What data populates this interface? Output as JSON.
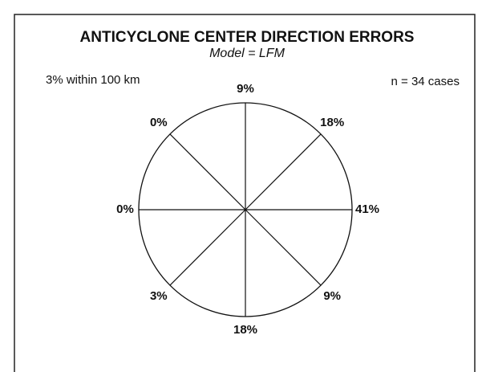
{
  "chart_data": {
    "type": "compass",
    "title": "ANTICYCLONE CENTER DIRECTION ERRORS",
    "subtitle": "Model = LFM",
    "annotations": [
      "3% within 100 km",
      "n = 34 cases"
    ],
    "values": [
      9,
      18,
      41,
      9,
      18,
      3,
      0,
      0
    ],
    "value_labels": [
      "9%",
      "18%",
      "41%",
      "9%",
      "18%",
      "3%",
      "0%",
      "0%"
    ],
    "color": "#111111"
  }
}
